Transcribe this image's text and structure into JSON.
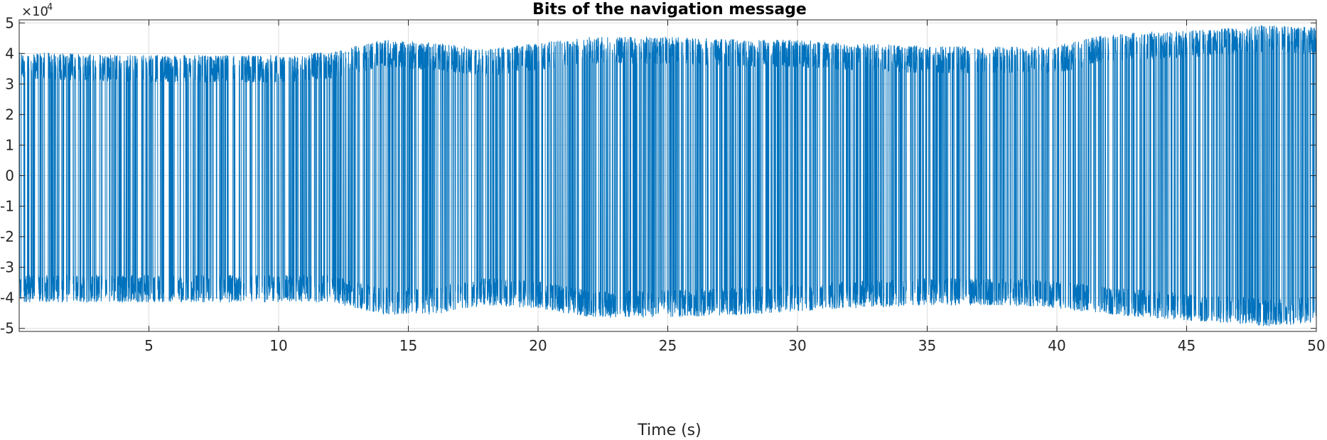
{
  "chart_data": {
    "type": "line",
    "title": "Bits of the navigation message",
    "xlabel": "Time (s)",
    "ylabel": "",
    "y_exponent": {
      "base": "×10",
      "power": "4"
    },
    "xlim": [
      0,
      50
    ],
    "ylim": [
      -51000,
      51000
    ],
    "x_ticks": [
      5,
      10,
      15,
      20,
      25,
      30,
      35,
      40,
      45,
      50
    ],
    "x_tick_labels": [
      "5",
      "10",
      "15",
      "20",
      "25",
      "30",
      "35",
      "40",
      "45",
      "50"
    ],
    "y_ticks": [
      5,
      4,
      3,
      2,
      1,
      0,
      -1,
      -2,
      -3,
      -4,
      -5
    ],
    "y_tick_labels": [
      "5",
      "4",
      "3",
      "2",
      "1",
      "0",
      "-1",
      "-2",
      "-3",
      "-4",
      "-5"
    ],
    "grid": true,
    "series": [
      {
        "color": "#0072bd",
        "description_of_values": "bipolar bit stream switching between roughly +3.6e4 and -3.7e4, amplitude growing to about ±4.4e4 after t=40 s",
        "envelope": {
          "t": [
            0,
            5,
            10,
            12,
            14,
            16,
            18,
            20,
            22,
            25,
            28,
            30,
            32,
            35,
            38,
            40,
            42,
            45,
            47,
            48,
            50
          ],
          "high_level": [
            36000,
            35000,
            35000,
            36000,
            40000,
            39000,
            37000,
            39000,
            41000,
            41000,
            40000,
            40000,
            39000,
            38000,
            38000,
            38000,
            42000,
            43000,
            44000,
            45000,
            44000
          ],
          "low_level": [
            -37000,
            -37000,
            -37000,
            -37000,
            -41000,
            -41000,
            -38000,
            -39000,
            -42000,
            -42000,
            -41000,
            -40000,
            -39000,
            -38000,
            -38000,
            -39000,
            -41000,
            -43000,
            -44000,
            -45000,
            -44000
          ]
        }
      }
    ]
  }
}
